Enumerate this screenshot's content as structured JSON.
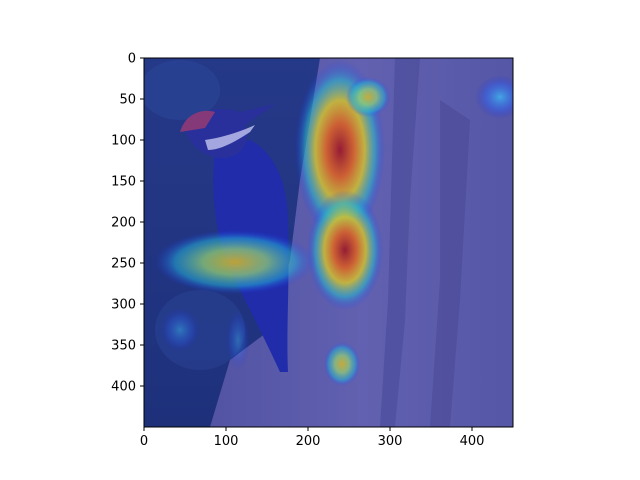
{
  "image": {
    "subject": "woodpecker-on-tree-trunk",
    "overlay": "attention-heatmap-jet",
    "width_units": 450,
    "height_units": 450
  },
  "axes": {
    "x_ticks": [
      {
        "value": 0,
        "label": "0"
      },
      {
        "value": 100,
        "label": "100"
      },
      {
        "value": 200,
        "label": "200"
      },
      {
        "value": 300,
        "label": "300"
      },
      {
        "value": 400,
        "label": "400"
      }
    ],
    "y_ticks": [
      {
        "value": 0,
        "label": "0"
      },
      {
        "value": 50,
        "label": "50"
      },
      {
        "value": 100,
        "label": "100"
      },
      {
        "value": 150,
        "label": "150"
      },
      {
        "value": 200,
        "label": "200"
      },
      {
        "value": 250,
        "label": "250"
      },
      {
        "value": 300,
        "label": "300"
      },
      {
        "value": 350,
        "label": "350"
      },
      {
        "value": 400,
        "label": "400"
      }
    ]
  }
}
